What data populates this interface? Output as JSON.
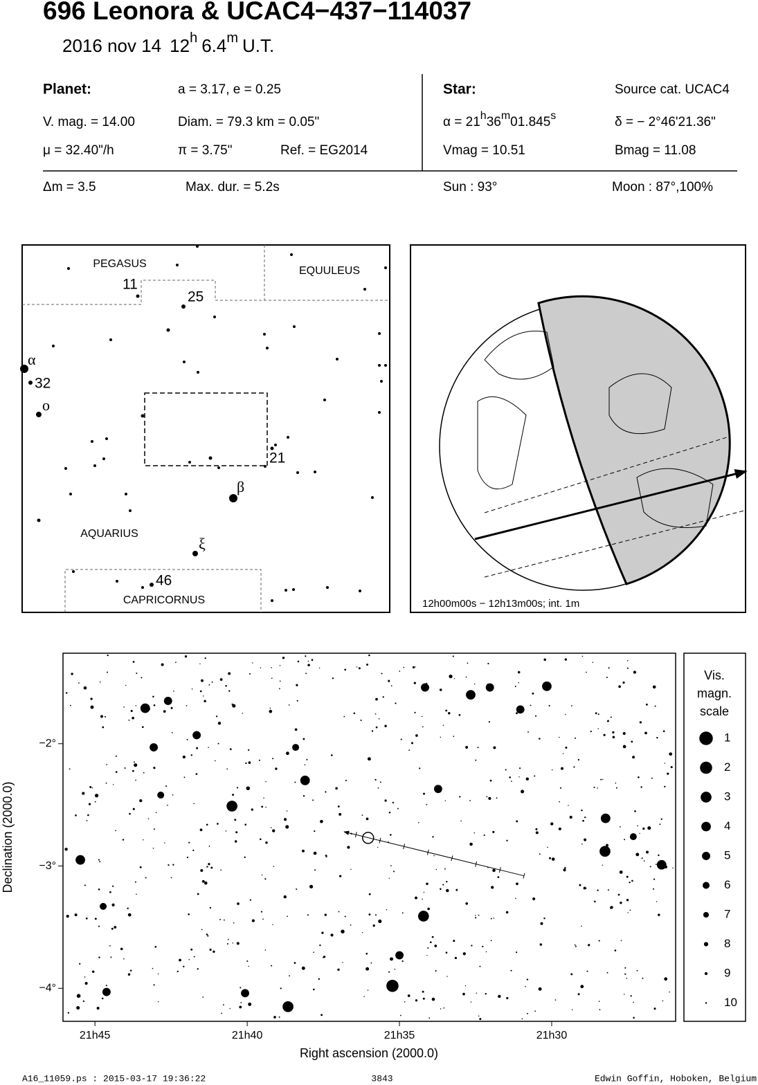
{
  "header": {
    "title": "696 Leonora  &  UCAC4−437−114037",
    "date": "2016 nov 14",
    "hour": "12",
    "hour_unit": "h",
    "minute": "6.4",
    "minute_unit": "m",
    "time_scale": "U.T."
  },
  "planet": {
    "label": "Planet:",
    "orbit": "a = 3.17, e = 0.25",
    "vmag": "V. mag. = 14.00",
    "diameter": "Diam. = 79.3 km = 0.05\"",
    "motion": "μ =  32.40\"/h",
    "parallax": "π =  3.75\"",
    "ref": "Ref. = EG2014"
  },
  "star": {
    "label": "Star:",
    "source": "Source cat.  UCAC4",
    "ra": {
      "prefix": "α = 21",
      "h": "h",
      "min": "36",
      "m": "m",
      "sec": "01.845",
      "s": "s"
    },
    "dec": "δ = − 2°46'21.36\"",
    "vmag": "Vmag = 10.51",
    "bmag": "Bmag = 11.08"
  },
  "event": {
    "delta_mag": "Δm = 3.5",
    "max_duration": "Max. dur. = 5.2s",
    "sun": "Sun :  93°",
    "moon": "Moon :  87°,100%"
  },
  "finder": {
    "constellations": [
      "PEGASUS",
      "EQUULEUS",
      "AQUARIUS",
      "CAPRICORNUS"
    ],
    "star_labels": [
      "11",
      "25",
      "α",
      "32",
      "o",
      "21",
      "β",
      "ξ",
      "46"
    ]
  },
  "globe": {
    "caption": "12h00m00s − 12h13m00s; int.  1m"
  },
  "chart_data": {
    "type": "scatter",
    "x_label": "Right ascension (2000.0)",
    "y_label": "Declination (2000.0)",
    "xlim": [
      46.05,
      25.93
    ],
    "xticks": [
      {
        "value": 45,
        "label": "21h45"
      },
      {
        "value": 40,
        "label": "21h40"
      },
      {
        "value": 35,
        "label": "21h35"
      },
      {
        "value": 30,
        "label": "21h30"
      }
    ],
    "ylim": [
      -4.27,
      -1.26
    ],
    "yticks": [
      {
        "value": -2,
        "label": "−2°"
      },
      {
        "value": -3,
        "label": "−3°"
      },
      {
        "value": -4,
        "label": "−4°"
      }
    ],
    "color": "#000000",
    "x": [
      35.23,
      34.21,
      38.66,
      28.25,
      40.5,
      32.66,
      30.16,
      45.48,
      28.23,
      26.39,
      43.35,
      38.1,
      42.6,
      43.07,
      41.66,
      35.0,
      44.62,
      40.07,
      33.73,
      34.16,
      32.03,
      31.03,
      44.73,
      27.32,
      38.41,
      42.84
    ],
    "values": [
      -3.98,
      -3.41,
      -4.15,
      -2.88,
      -2.51,
      -1.6,
      -1.53,
      -2.95,
      -2.61,
      -2.99,
      -1.71,
      -2.3,
      -1.65,
      -2.03,
      -1.93,
      -3.73,
      -4.03,
      -4.04,
      -2.37,
      -1.54,
      -1.54,
      -1.72,
      -3.33,
      -2.76,
      -2.03,
      -2.42
    ],
    "magnitudes": [
      2,
      3,
      3,
      3,
      3,
      4,
      4,
      4,
      4,
      4,
      4,
      4,
      5,
      5,
      5,
      5,
      5,
      5,
      5,
      5,
      5,
      5,
      6,
      6,
      6,
      6
    ],
    "track_x": [
      30.91,
      36.82
    ],
    "track_y": [
      -3.08,
      -2.72
    ],
    "target_x": 36.03,
    "target_y": -2.77,
    "legend_title": [
      "Vis.",
      "magn.",
      "scale"
    ],
    "legend_magnitudes": [
      1,
      2,
      3,
      4,
      5,
      6,
      7,
      8,
      9,
      10
    ]
  },
  "footer": {
    "file": "A16_11059.ps : 2015-03-17 19:36:22",
    "number": "3843",
    "author": "Edwin Goffin, Hoboken, Belgium"
  }
}
